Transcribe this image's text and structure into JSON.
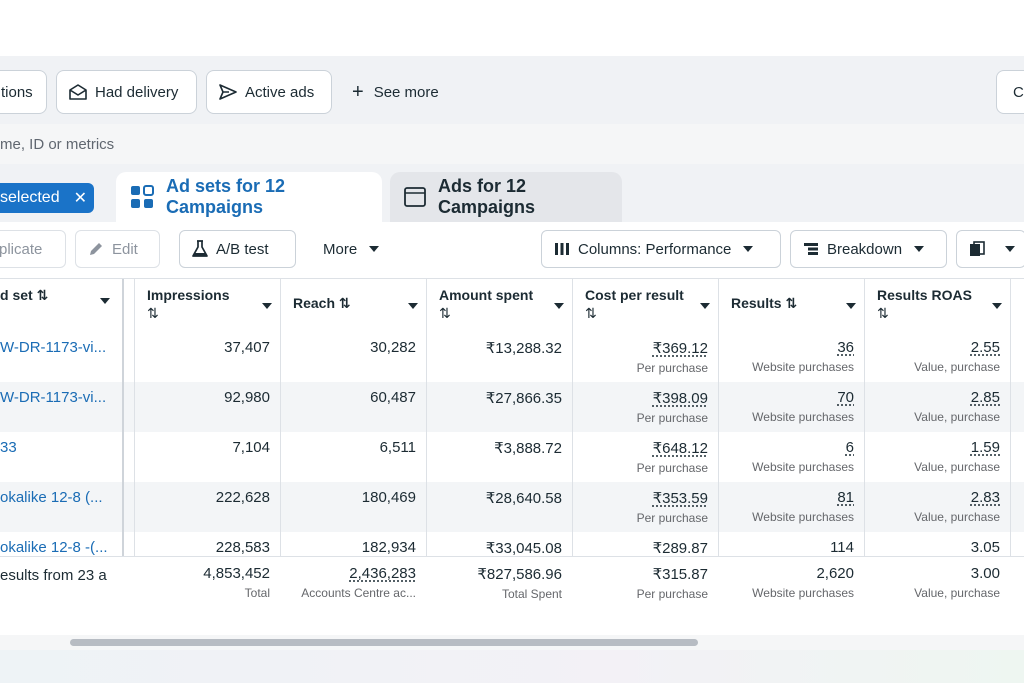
{
  "filters": {
    "partial_label": "tions",
    "had_delivery": "Had delivery",
    "active_ads": "Active ads",
    "see_more": "See more",
    "right_partial": "C"
  },
  "search": {
    "placeholder": "me, ID or metrics"
  },
  "tabs": {
    "selected": "selected",
    "adsets": "Ad sets for 12 Campaigns",
    "ads": "Ads for 12 Campaigns"
  },
  "toolbar": {
    "duplicate": "plicate",
    "edit": "Edit",
    "ab_test": "A/B test",
    "more": "More",
    "columns": "Columns: Performance",
    "breakdown": "Breakdown"
  },
  "table": {
    "headers": {
      "name": "d set ⇅",
      "impressions": "Impressions",
      "reach": "Reach ⇅",
      "amount": "Amount spent",
      "cpr": "Cost per result",
      "results": "Results ⇅",
      "roas": "Results ROAS"
    },
    "sort_glyph": "⇅",
    "rows": [
      {
        "name": "W-DR-1173-vi...",
        "impressions": "37,407",
        "reach": "30,282",
        "amount": "₹13,288.32",
        "cpr": "₹369.12",
        "cpr_sub": "Per purchase",
        "results": "36",
        "results_sub": "Website purchases",
        "roas": "2.55",
        "roas_sub": "Value, purchase"
      },
      {
        "name": "W-DR-1173-vi...",
        "impressions": "92,980",
        "reach": "60,487",
        "amount": "₹27,866.35",
        "cpr": "₹398.09",
        "cpr_sub": "Per purchase",
        "results": "70",
        "results_sub": "Website purchases",
        "roas": "2.85",
        "roas_sub": "Value, purchase"
      },
      {
        "name": "33",
        "impressions": "7,104",
        "reach": "6,511",
        "amount": "₹3,888.72",
        "cpr": "₹648.12",
        "cpr_sub": "Per purchase",
        "results": "6",
        "results_sub": "Website purchases",
        "roas": "1.59",
        "roas_sub": "Value, purchase"
      },
      {
        "name": "okalike 12-8 (...",
        "impressions": "222,628",
        "reach": "180,469",
        "amount": "₹28,640.58",
        "cpr": "₹353.59",
        "cpr_sub": "Per purchase",
        "results": "81",
        "results_sub": "Website purchases",
        "roas": "2.83",
        "roas_sub": "Value, purchase"
      },
      {
        "name": "okalike 12-8 -(...",
        "impressions": "228,583",
        "reach": "182,934",
        "amount": "₹33,045.08",
        "cpr": "₹289.87",
        "cpr_sub": "",
        "results": "114",
        "results_sub": "",
        "roas": "3.05",
        "roas_sub": ""
      }
    ],
    "totals": {
      "name": "esults from 23 a",
      "impressions": "4,853,452",
      "impressions_sub": "Total",
      "reach": "2,436,283",
      "reach_sub": "Accounts Centre ac...",
      "amount": "₹827,586.96",
      "amount_sub": "Total Spent",
      "cpr": "₹315.87",
      "cpr_sub": "Per purchase",
      "results": "2,620",
      "results_sub": "Website purchases",
      "roas": "3.00",
      "roas_sub": "Value, purchase"
    }
  }
}
